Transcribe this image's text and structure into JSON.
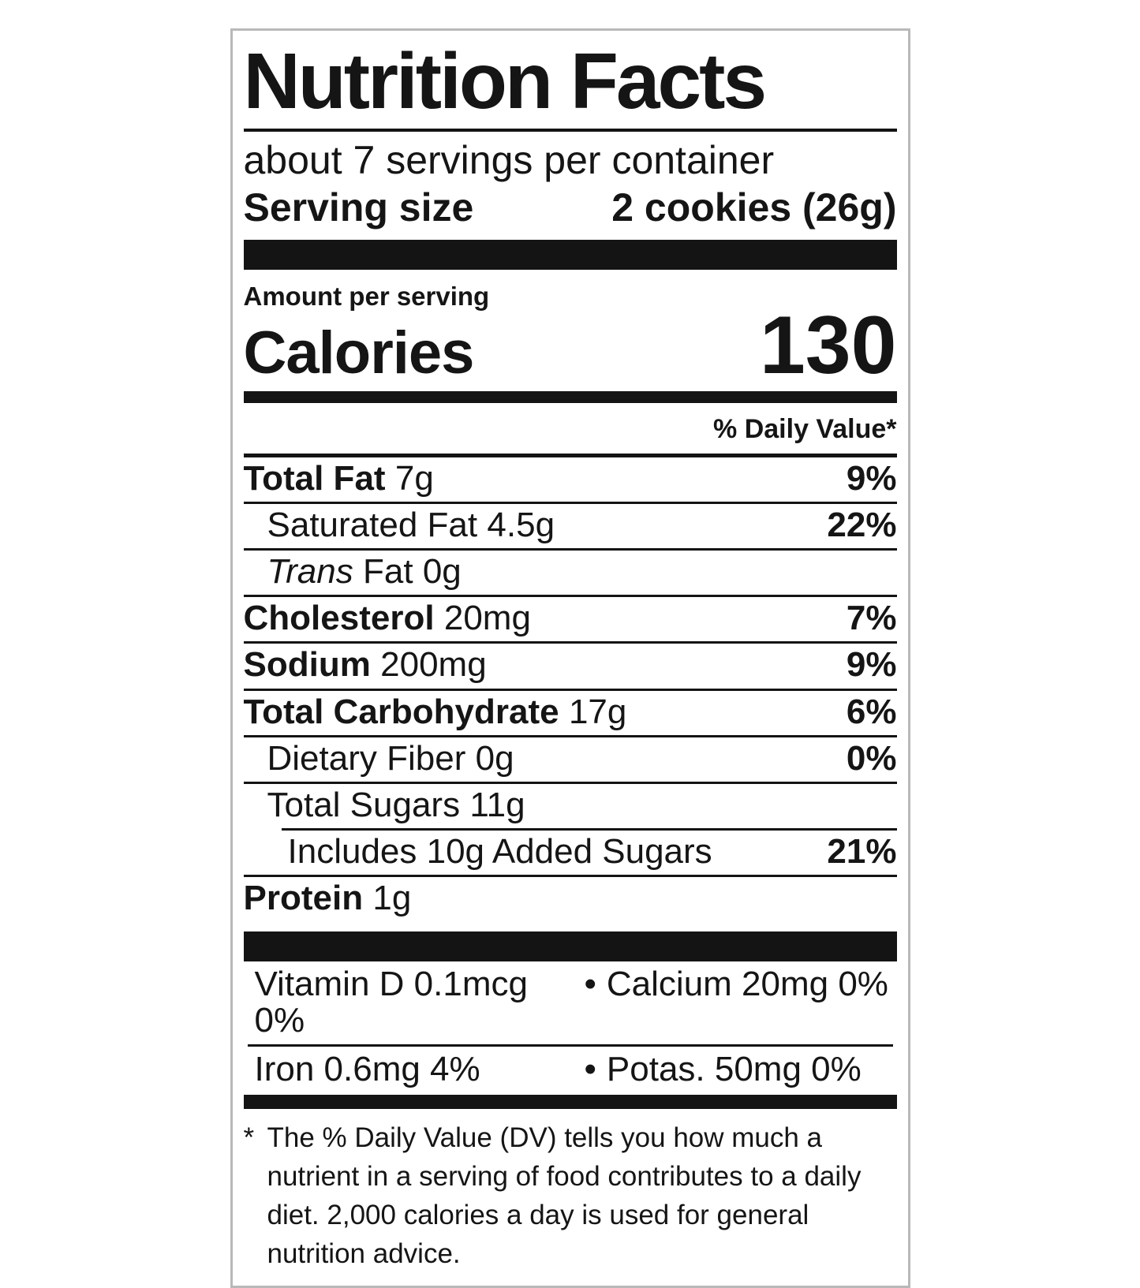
{
  "colors": {
    "text": "#151515",
    "bar": "#141414",
    "border": "#b9b9b9",
    "background": "#ffffff"
  },
  "label": {
    "title": "Nutrition Facts",
    "servings_per_container": "about 7 servings per container",
    "serving_size_label": "Serving size",
    "serving_size_value": "2 cookies (26g)",
    "amount_per_serving": "Amount per serving",
    "calories_label": "Calories",
    "calories_value": "130",
    "daily_value_header": "% Daily Value*"
  },
  "rows": [
    {
      "bold": "Total Fat",
      "text": "",
      "italic": "",
      "amount": "7g",
      "dv": "9%"
    },
    {
      "bold": "",
      "text": "Saturated Fat",
      "italic": "",
      "amount": "4.5g",
      "dv": "22%"
    },
    {
      "bold": "",
      "text": "Fat 0g",
      "italic": "Trans",
      "amount": "",
      "dv": ""
    },
    {
      "bold": "Cholesterol",
      "text": "",
      "italic": "",
      "amount": "20mg",
      "dv": "7%"
    },
    {
      "bold": "Sodium",
      "text": "",
      "italic": "",
      "amount": "200mg",
      "dv": "9%"
    },
    {
      "bold": "Total Carbohydrate",
      "text": "",
      "italic": "",
      "amount": "17g",
      "dv": "6%"
    },
    {
      "bold": "",
      "text": "Dietary Fiber",
      "italic": "",
      "amount": "0g",
      "dv": "0%"
    },
    {
      "bold": "",
      "text": "Total Sugars",
      "italic": "",
      "amount": "11g",
      "dv": ""
    },
    {
      "bold": "",
      "text": "Includes 10g Added Sugars",
      "italic": "",
      "amount": "",
      "dv": "21%"
    },
    {
      "bold": "Protein",
      "text": "",
      "italic": "",
      "amount": "1g",
      "dv": ""
    }
  ],
  "vitamins": [
    {
      "left": "Vitamin D 0.1mcg 0%",
      "bullet": "•",
      "right": "Calcium 20mg 0%"
    },
    {
      "left": "Iron 0.6mg 4%",
      "bullet": "•",
      "right": "Potas. 50mg 0%"
    }
  ],
  "footnote": {
    "marker": "*",
    "text": "The % Daily Value (DV) tells you how much a nutrient in a serving of food contributes to a daily diet. 2,000 calories a day is used for general nutrition advice."
  }
}
